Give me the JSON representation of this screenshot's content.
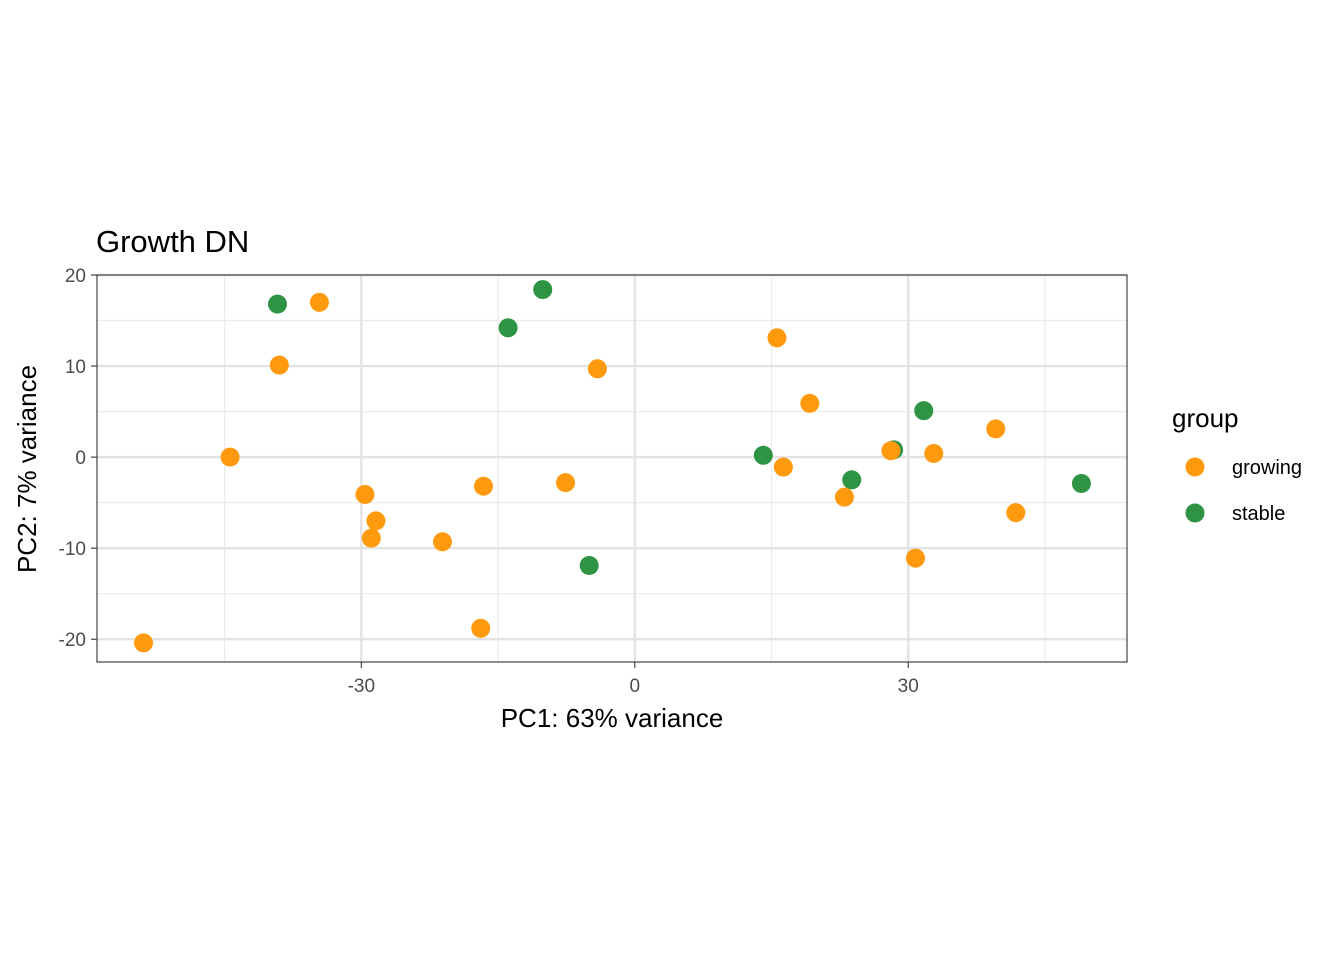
{
  "chart_data": {
    "type": "scatter",
    "title": "Growth DN",
    "xlabel": "PC1: 63% variance",
    "ylabel": "PC2: 7% variance",
    "xlim": [
      -59,
      54
    ],
    "ylim": [
      -22.5,
      20
    ],
    "x_ticks": [
      -30,
      0,
      30
    ],
    "x_tick_labels": [
      "-30",
      "0",
      "30"
    ],
    "x_minor_gridlines": [
      -45,
      -15,
      15,
      45
    ],
    "y_ticks": [
      -20,
      -10,
      0,
      10,
      20
    ],
    "y_tick_labels": [
      "-20",
      "-10",
      "0",
      "10",
      "20"
    ],
    "y_minor_gridlines": [
      -15,
      -5,
      5,
      15
    ],
    "grid": true,
    "legend": {
      "title": "group",
      "position": "right",
      "entries": [
        {
          "label": "growing",
          "color": "#FF9A0E"
        },
        {
          "label": "stable",
          "color": "#2E9444"
        }
      ]
    },
    "series": [
      {
        "name": "stable",
        "color": "#2E9444",
        "points": [
          {
            "x": -39.2,
            "y": 16.8
          },
          {
            "x": -10.1,
            "y": 18.4
          },
          {
            "x": -13.9,
            "y": 14.2
          },
          {
            "x": -5.0,
            "y": -11.9
          },
          {
            "x": 14.1,
            "y": 0.2
          },
          {
            "x": 23.8,
            "y": -2.5
          },
          {
            "x": 28.4,
            "y": 0.8
          },
          {
            "x": 31.7,
            "y": 5.1
          },
          {
            "x": 49.0,
            "y": -2.9
          }
        ]
      },
      {
        "name": "growing",
        "color": "#FF9A0E",
        "points": [
          {
            "x": -34.6,
            "y": 17.0
          },
          {
            "x": -39.0,
            "y": 10.1
          },
          {
            "x": -44.4,
            "y": 0.0
          },
          {
            "x": -53.9,
            "y": -20.4
          },
          {
            "x": -29.6,
            "y": -4.1
          },
          {
            "x": -28.4,
            "y": -7.0
          },
          {
            "x": -28.9,
            "y": -8.9
          },
          {
            "x": -21.1,
            "y": -9.3
          },
          {
            "x": -16.6,
            "y": -3.2
          },
          {
            "x": -16.9,
            "y": -18.8
          },
          {
            "x": -7.6,
            "y": -2.8
          },
          {
            "x": -4.1,
            "y": 9.7
          },
          {
            "x": 15.6,
            "y": 13.1
          },
          {
            "x": 19.2,
            "y": 5.9
          },
          {
            "x": 16.3,
            "y": -1.1
          },
          {
            "x": 23.0,
            "y": -4.4
          },
          {
            "x": 28.1,
            "y": 0.7
          },
          {
            "x": 32.8,
            "y": 0.4
          },
          {
            "x": 30.8,
            "y": -11.1
          },
          {
            "x": 39.6,
            "y": 3.1
          },
          {
            "x": 41.8,
            "y": -6.1
          }
        ]
      }
    ]
  }
}
